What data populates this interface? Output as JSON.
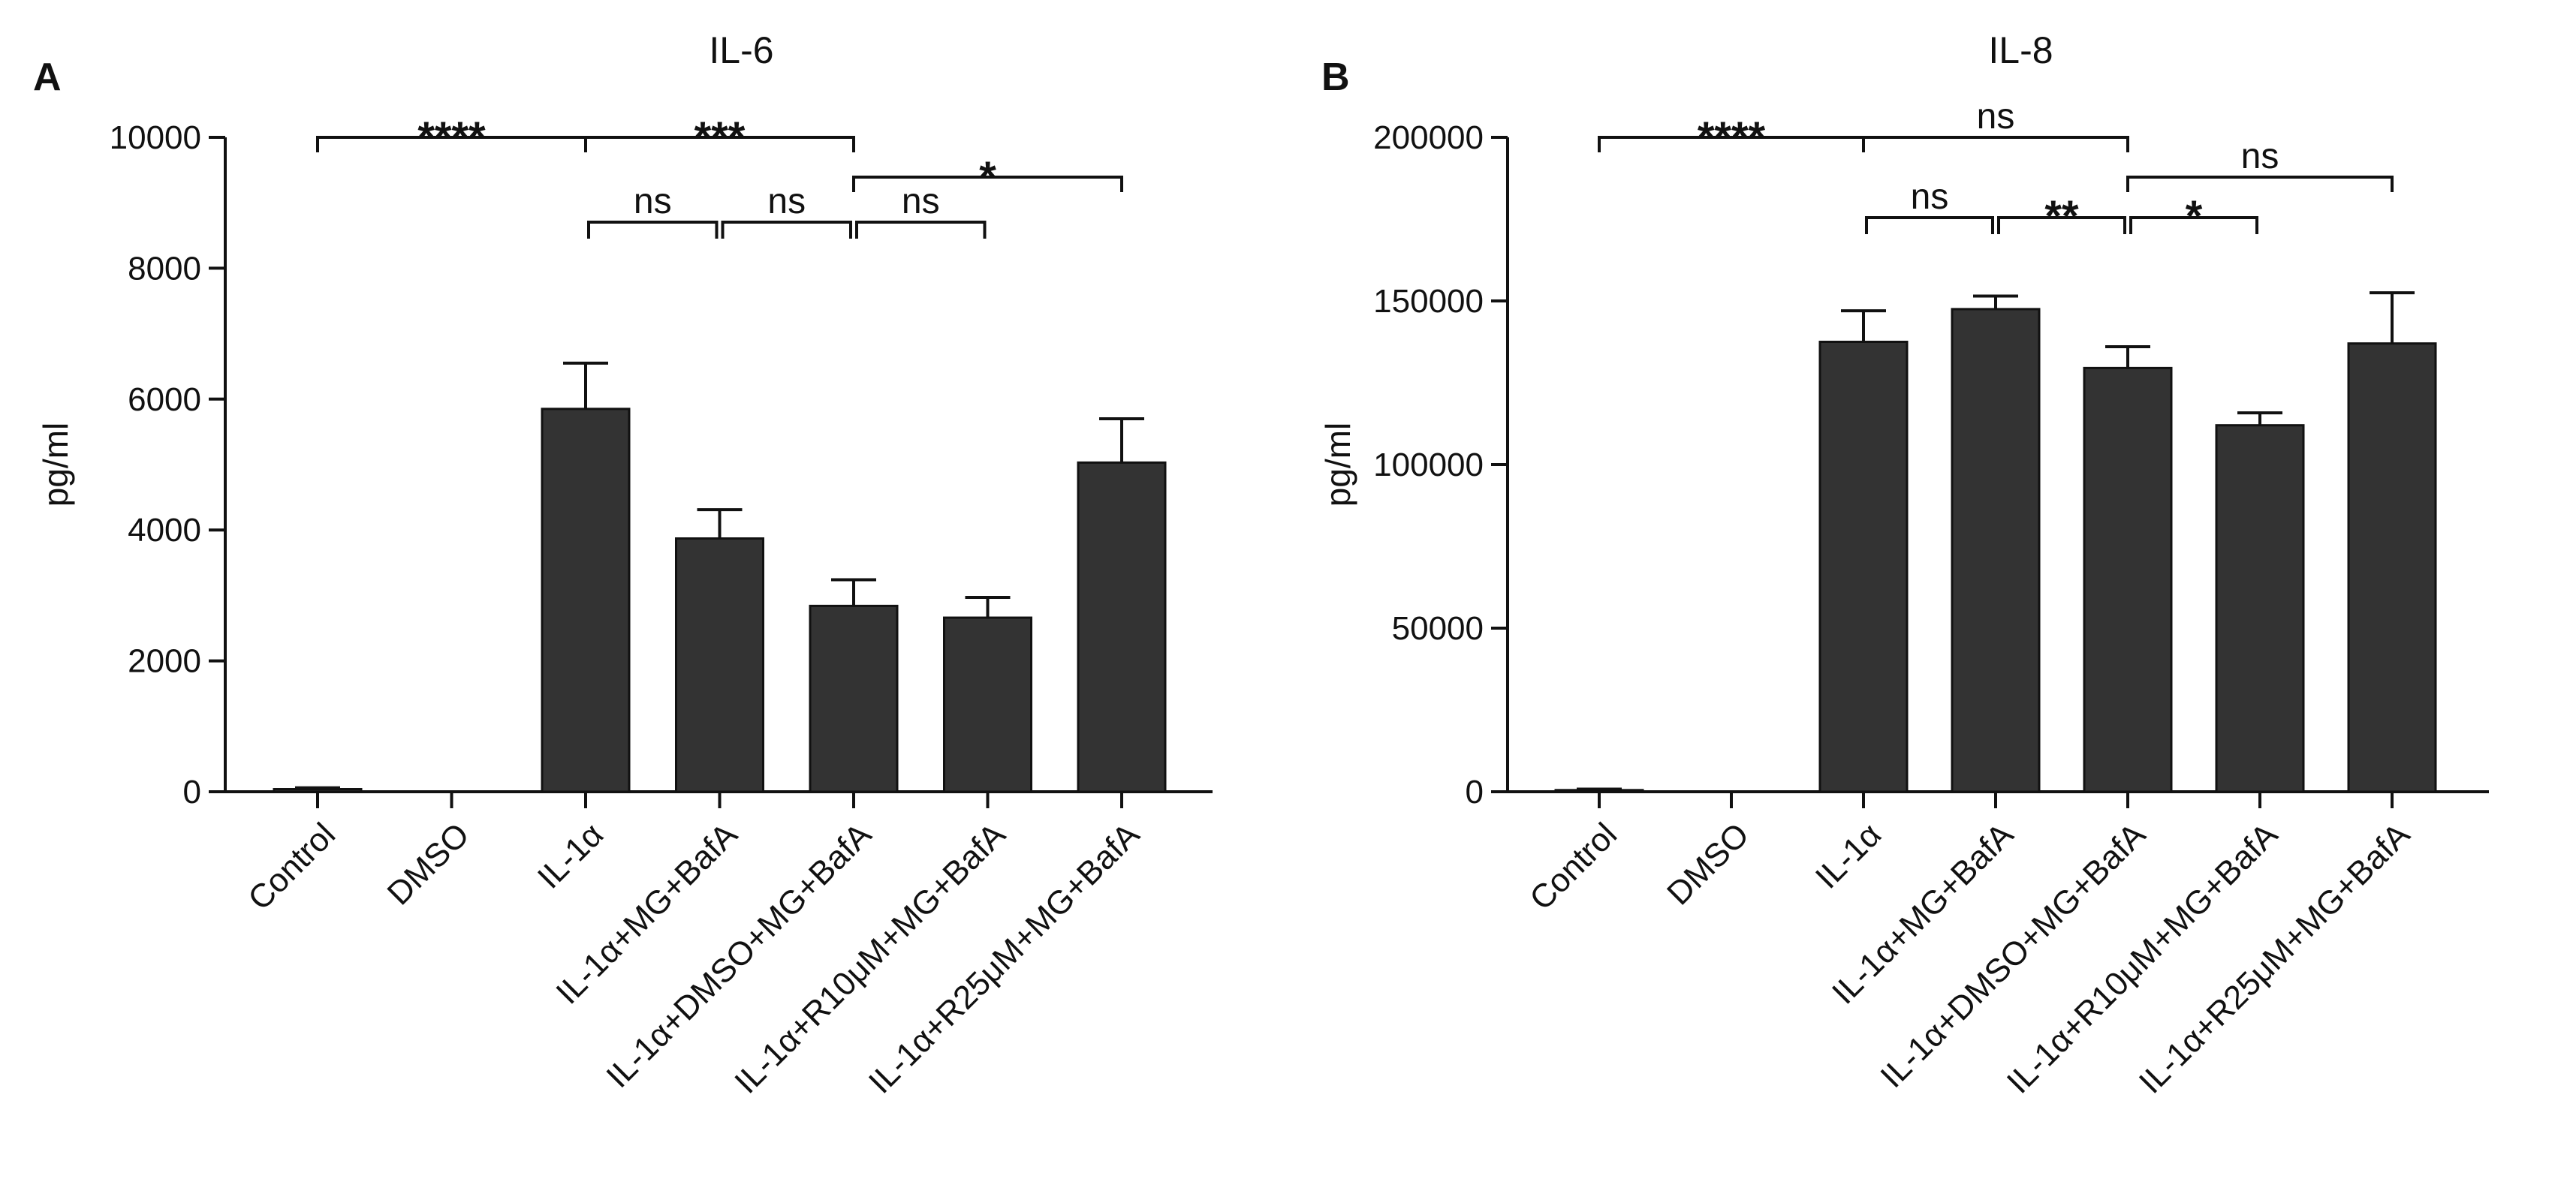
{
  "chart_data": [
    {
      "type": "bar",
      "panel_label": "A",
      "title": "IL-6",
      "xlabel": "",
      "ylabel": "pg/ml",
      "ylim": [
        0,
        10000
      ],
      "yticks": [
        0,
        2000,
        4000,
        6000,
        8000,
        10000
      ],
      "yticks_labels": [
        "0",
        "2000",
        "4000",
        "6000",
        "8000",
        "10000"
      ],
      "grid": false,
      "categories": [
        "Control",
        "DMSO",
        "IL-1α",
        "IL-1α+MG+BafA",
        "IL-1α+DMSO+MG+BafA",
        "IL-1α+R10μM+MG+BafA",
        "IL-1α+R25μM+MG+BafA"
      ],
      "values": [
        40,
        0,
        5850,
        3870,
        2840,
        2660,
        5030
      ],
      "errors": [
        20,
        0,
        700,
        440,
        400,
        310,
        670
      ],
      "color": "#333333",
      "significance": [
        {
          "from": 0,
          "to": 2,
          "label": "****",
          "level": 0
        },
        {
          "from": 2,
          "to": 4,
          "label": "***",
          "level": 0
        },
        {
          "from": 4,
          "to": 6,
          "label": "*",
          "level": 1
        },
        {
          "from": 2,
          "to": 3,
          "label": "ns",
          "level": 2
        },
        {
          "from": 3,
          "to": 4,
          "label": "ns",
          "level": 2
        },
        {
          "from": 4,
          "to": 5,
          "label": "ns",
          "level": 2
        }
      ]
    },
    {
      "type": "bar",
      "panel_label": "B",
      "title": "IL-8",
      "xlabel": "",
      "ylabel": "pg/ml",
      "ylim": [
        0,
        200000
      ],
      "yticks": [
        0,
        50000,
        100000,
        150000,
        200000
      ],
      "yticks_labels": [
        "0",
        "50000",
        "100000",
        "150000",
        "200000"
      ],
      "grid": false,
      "categories": [
        "Control",
        "DMSO",
        "IL-1α",
        "IL-1α+MG+BafA",
        "IL-1α+DMSO+MG+BafA",
        "IL-1α+R10μM+MG+BafA",
        "IL-1α+R25μM+MG+BafA"
      ],
      "values": [
        500,
        0,
        137500,
        147500,
        129500,
        112000,
        137000
      ],
      "errors": [
        300,
        0,
        9500,
        4000,
        6500,
        3800,
        15500
      ],
      "color": "#333333",
      "significance": [
        {
          "from": 0,
          "to": 2,
          "label": "****",
          "level": 0
        },
        {
          "from": 2,
          "to": 4,
          "label": "ns",
          "level": 0
        },
        {
          "from": 4,
          "to": 6,
          "label": "ns",
          "level": 1
        },
        {
          "from": 2,
          "to": 3,
          "label": "ns",
          "level": 2
        },
        {
          "from": 3,
          "to": 4,
          "label": "**",
          "level": 2
        },
        {
          "from": 4,
          "to": 5,
          "label": "*",
          "level": 2
        }
      ]
    }
  ]
}
